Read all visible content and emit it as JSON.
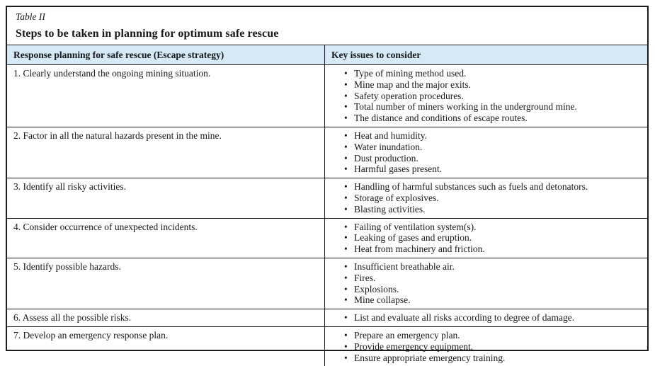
{
  "caption": {
    "label": "Table II",
    "title": "Steps to be taken in planning for optimum safe rescue"
  },
  "table": {
    "headers": {
      "left": "Response planning for safe rescue (Escape strategy)",
      "right": "Key issues to consider"
    },
    "bullet_glyph": "•",
    "rows": [
      {
        "step": "1. Clearly understand the ongoing mining situation.",
        "issues": [
          "Type of mining method used.",
          "Mine map and the major exits.",
          "Safety operation procedures.",
          "Total number of miners working in the underground mine.",
          "The distance and conditions of escape routes."
        ]
      },
      {
        "step": "2. Factor in all the natural hazards present in the mine.",
        "issues": [
          "Heat and humidity.",
          "Water inundation.",
          "Dust production.",
          "Harmful gases present."
        ]
      },
      {
        "step": "3. Identify all risky activities.",
        "issues": [
          "Handling of harmful substances such as fuels and detonators.",
          "Storage of explosives.",
          "Blasting activities."
        ]
      },
      {
        "step": "4. Consider occurrence of unexpected incidents.",
        "issues": [
          "Failing of ventilation system(s).",
          "Leaking of gases and eruption.",
          "Heat from machinery and friction."
        ]
      },
      {
        "step": "5. Identify possible hazards.",
        "issues": [
          "Insufficient breathable air.",
          "Fires.",
          "Explosions.",
          "Mine collapse."
        ]
      },
      {
        "step": "6. Assess all the possible risks.",
        "issues": [
          "List and evaluate all risks according to degree of damage."
        ]
      },
      {
        "step": "7. Develop an emergency response plan.",
        "issues": [
          "Prepare an emergency plan.",
          "Provide emergency equipment.",
          "Ensure appropriate emergency training."
        ]
      }
    ]
  },
  "colors": {
    "header_bg": "#d5e9f7",
    "border": "#1c1c1c",
    "text": "#17171c"
  }
}
